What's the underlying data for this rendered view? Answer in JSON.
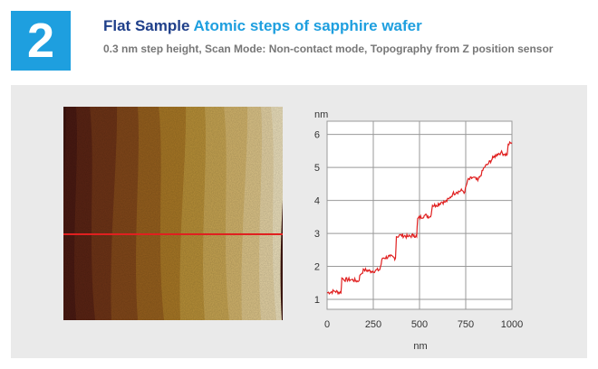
{
  "header": {
    "number": "2",
    "title_bold": "Flat Sample",
    "title_accent": "Atomic steps of sapphire wafer",
    "subtitle": "0.3 nm step height,  Scan Mode: Non-contact mode, Topography from Z position sensor"
  },
  "colors": {
    "badge": "#1e9fdf",
    "title": "#1f3f8a",
    "accent": "#1e9fdf",
    "line_profile": "#e02020"
  },
  "chart_data": {
    "type": "line",
    "xlabel": "nm",
    "ylabel": "nm",
    "xlim": [
      0,
      1000
    ],
    "ylim": [
      0.7,
      6.4
    ],
    "xticks": [
      0,
      250,
      500,
      750,
      1000
    ],
    "yticks": [
      1,
      2,
      3,
      4,
      5,
      6
    ],
    "grid": true,
    "series": [
      {
        "x": [
          0,
          40,
          75,
          80,
          90,
          130,
          170,
          180,
          200,
          240,
          285,
          300,
          340,
          370,
          375,
          400,
          440,
          470,
          485,
          490,
          530,
          560,
          570,
          590,
          620,
          640,
          660,
          680,
          700,
          730,
          745,
          760,
          790,
          815,
          830,
          850,
          870,
          900,
          920,
          940,
          960,
          975,
          980,
          1000
        ],
        "y": [
          1.2,
          1.25,
          1.2,
          1.65,
          1.6,
          1.6,
          1.55,
          1.75,
          1.9,
          1.85,
          1.9,
          2.25,
          2.3,
          2.25,
          2.9,
          2.95,
          2.9,
          2.95,
          2.9,
          3.45,
          3.55,
          3.5,
          3.85,
          3.85,
          3.95,
          3.95,
          4.05,
          4.2,
          4.25,
          4.3,
          4.25,
          4.6,
          4.7,
          4.6,
          4.75,
          5.0,
          5.1,
          5.3,
          5.4,
          5.45,
          5.4,
          5.4,
          5.7,
          5.75
        ]
      }
    ]
  }
}
